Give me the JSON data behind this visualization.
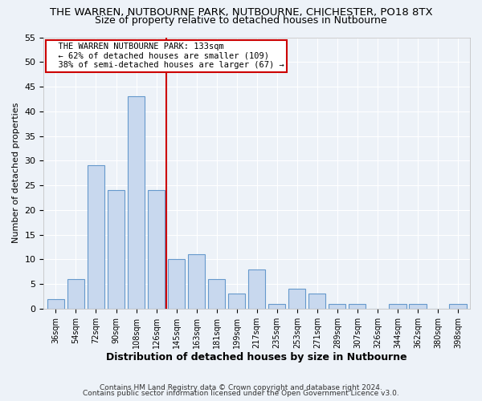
{
  "title1": "THE WARREN, NUTBOURNE PARK, NUTBOURNE, CHICHESTER, PO18 8TX",
  "title2": "Size of property relative to detached houses in Nutbourne",
  "xlabel": "Distribution of detached houses by size in Nutbourne",
  "ylabel": "Number of detached properties",
  "bar_labels": [
    "36sqm",
    "54sqm",
    "72sqm",
    "90sqm",
    "108sqm",
    "126sqm",
    "145sqm",
    "163sqm",
    "181sqm",
    "199sqm",
    "217sqm",
    "235sqm",
    "253sqm",
    "271sqm",
    "289sqm",
    "307sqm",
    "326sqm",
    "344sqm",
    "362sqm",
    "380sqm",
    "398sqm"
  ],
  "bar_heights": [
    2,
    6,
    29,
    24,
    43,
    24,
    10,
    11,
    6,
    3,
    8,
    1,
    4,
    3,
    1,
    1,
    0,
    1,
    1,
    0,
    1
  ],
  "bar_color": "#c8d8ee",
  "bar_edge_color": "#6699cc",
  "vline_color": "#cc0000",
  "annotation_text": "  THE WARREN NUTBOURNE PARK: 133sqm\n  ← 62% of detached houses are smaller (109)\n  38% of semi-detached houses are larger (67) →",
  "annotation_box_color": "#ffffff",
  "annotation_box_edge": "#cc0000",
  "ylim": [
    0,
    55
  ],
  "yticks": [
    0,
    5,
    10,
    15,
    20,
    25,
    30,
    35,
    40,
    45,
    50,
    55
  ],
  "footer1": "Contains HM Land Registry data © Crown copyright and database right 2024.",
  "footer2": "Contains public sector information licensed under the Open Government Licence v3.0.",
  "bg_color": "#edf2f8",
  "grid_color": "#ffffff",
  "title1_fontsize": 9.5,
  "title2_fontsize": 9,
  "annot_fontsize": 7.5
}
